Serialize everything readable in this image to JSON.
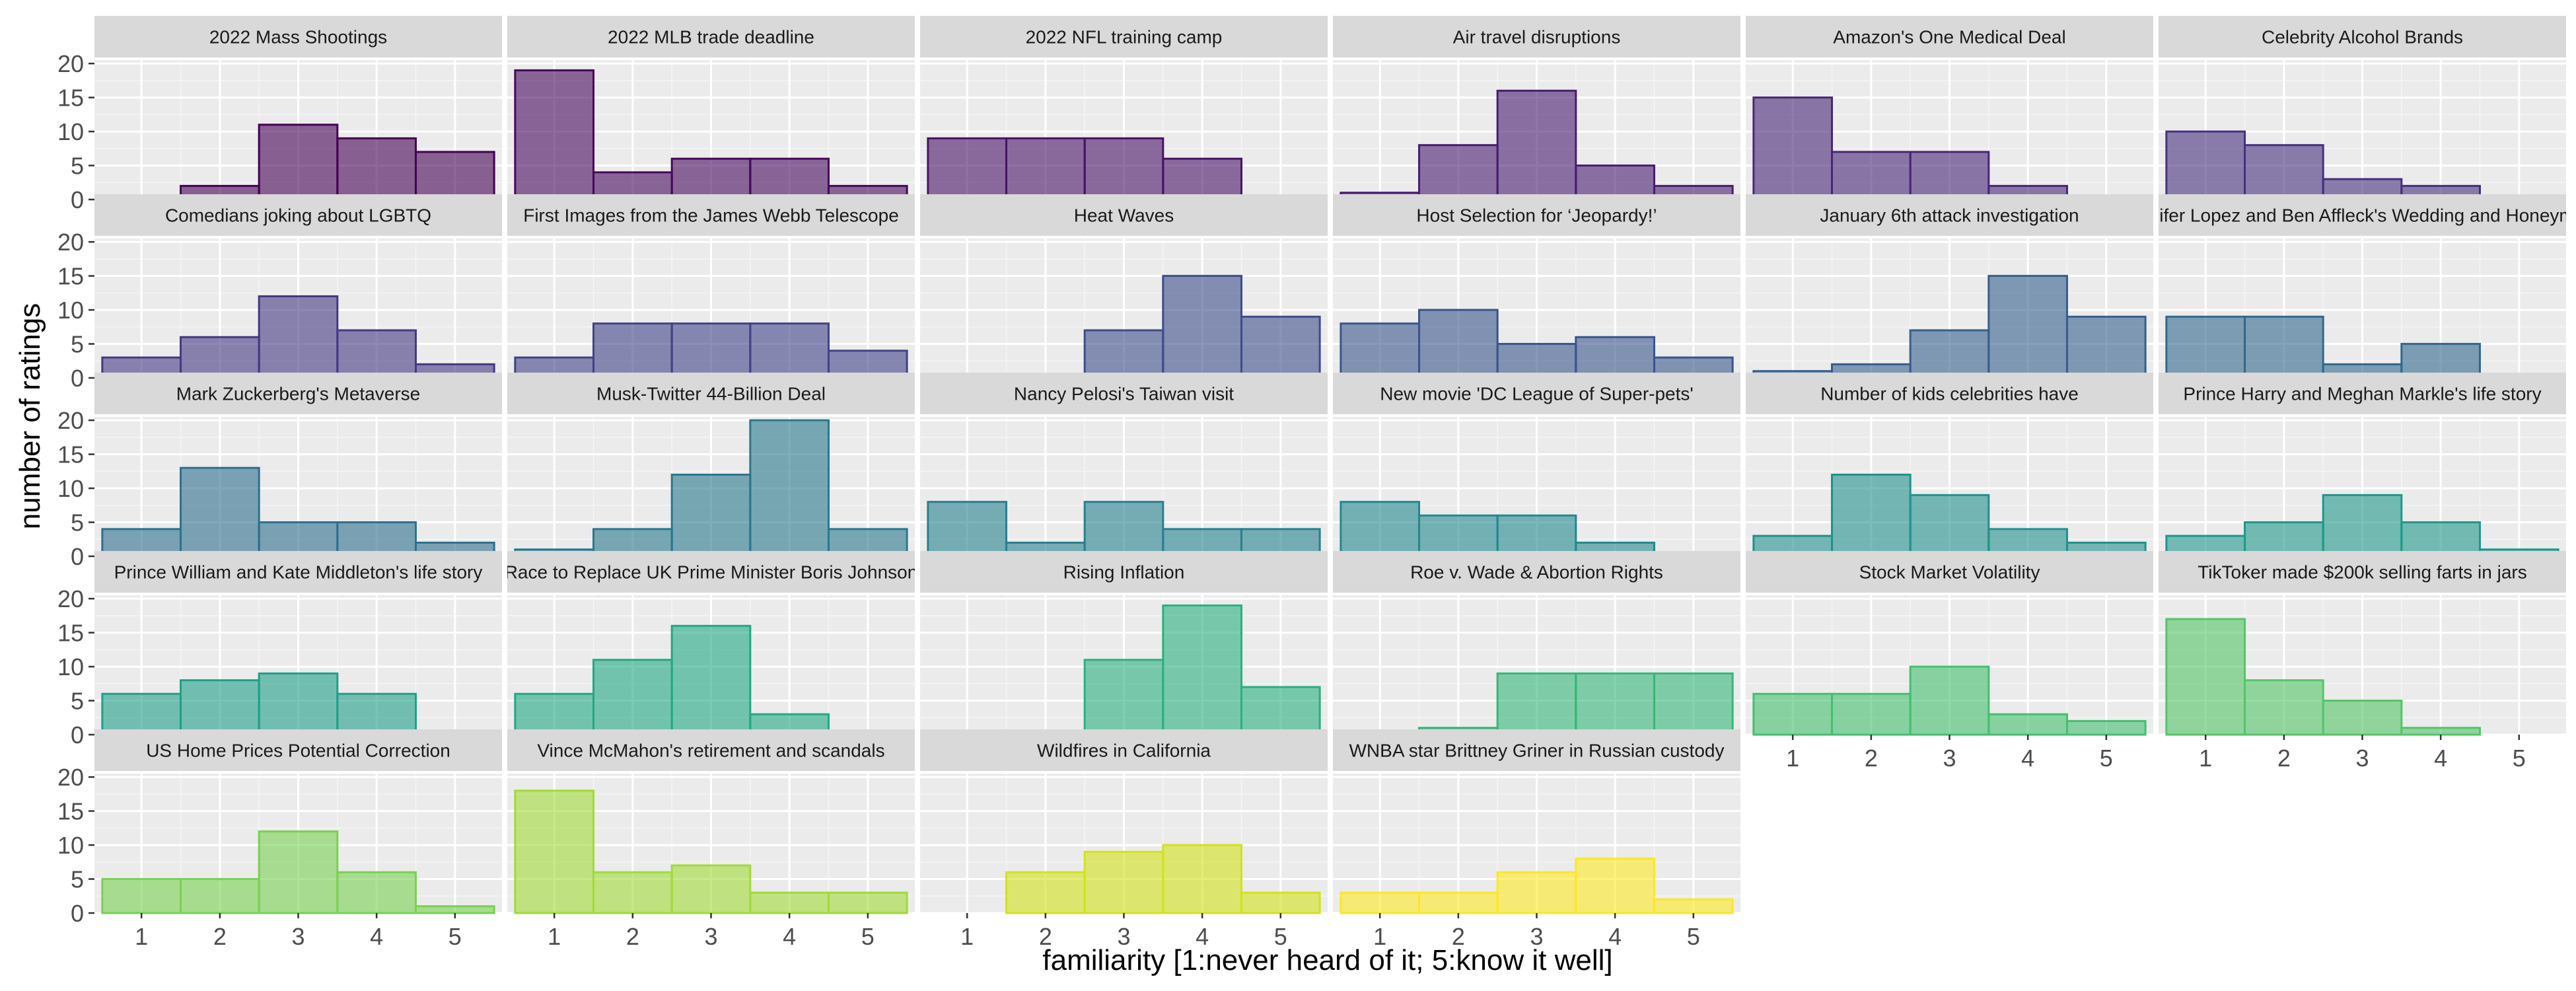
{
  "chart_data": {
    "type": "bar",
    "layout": "facet-grid",
    "xlabel": "familiarity [1:never heard of it; 5:know it well]",
    "ylabel": "number of ratings",
    "categories": [
      1,
      2,
      3,
      4,
      5
    ],
    "x_ticks": [
      "1",
      "2",
      "3",
      "4",
      "5"
    ],
    "y_ticks": [
      "0",
      "5",
      "10",
      "15",
      "20"
    ],
    "ylim": [
      0,
      20.5
    ],
    "grid": true,
    "colors": [
      "#440154",
      "#482575",
      "#414487",
      "#35608d",
      "#2a788e",
      "#21908d",
      "#22a884",
      "#43bf71",
      "#7ad151",
      "#bddf26",
      "#fde725"
    ],
    "panels": [
      {
        "title": "2022 Mass Shootings",
        "values": [
          0,
          2,
          11,
          9,
          7
        ],
        "color": "#440154"
      },
      {
        "title": "2022 MLB trade deadline",
        "values": [
          19,
          4,
          6,
          6,
          2
        ],
        "color": "#46085c"
      },
      {
        "title": "2022 NFL training camp",
        "values": [
          9,
          9,
          9,
          6,
          0
        ],
        "color": "#471365"
      },
      {
        "title": "Air travel disruptions",
        "values": [
          1,
          8,
          16,
          5,
          2
        ],
        "color": "#481d6f"
      },
      {
        "title": "Amazon's One Medical Deal",
        "values": [
          15,
          7,
          7,
          2,
          0
        ],
        "color": "#482677"
      },
      {
        "title": "Celebrity Alcohol Brands",
        "values": [
          10,
          8,
          3,
          2,
          0
        ],
        "color": "#46307e"
      },
      {
        "title": "Comedians joking about LGBTQ",
        "values": [
          3,
          6,
          12,
          7,
          2
        ],
        "color": "#443983"
      },
      {
        "title": "First Images from the James Webb Telescope",
        "values": [
          3,
          8,
          8,
          8,
          4
        ],
        "color": "#414287"
      },
      {
        "title": "Heat Waves",
        "values": [
          0,
          0,
          7,
          15,
          9
        ],
        "color": "#3d4d8a"
      },
      {
        "title": "Host Selection for ‘Jeopardy!’",
        "values": [
          8,
          10,
          5,
          6,
          3
        ],
        "color": "#39558c"
      },
      {
        "title": "January 6th attack investigation",
        "values": [
          1,
          2,
          7,
          15,
          9
        ],
        "color": "#355f8d"
      },
      {
        "title": "Jennifer Lopez and Ben Affleck's Wedding and Honeymoon",
        "values": [
          9,
          9,
          2,
          5,
          0
        ],
        "color": "#31688e"
      },
      {
        "title": "Mark Zuckerberg's Metaverse",
        "values": [
          4,
          13,
          5,
          5,
          2
        ],
        "color": "#2d708e"
      },
      {
        "title": "Musk-Twitter 44-Billion Deal",
        "values": [
          1,
          4,
          12,
          20,
          4
        ],
        "color": "#2a788e"
      },
      {
        "title": "Nancy Pelosi's Taiwan visit",
        "values": [
          8,
          2,
          8,
          4,
          4
        ],
        "color": "#27808e"
      },
      {
        "title": "New movie 'DC League of Super-pets'",
        "values": [
          8,
          6,
          6,
          2,
          0
        ],
        "color": "#23888e"
      },
      {
        "title": "Number of kids celebrities have",
        "values": [
          3,
          12,
          9,
          4,
          2
        ],
        "color": "#21918c"
      },
      {
        "title": "Prince Harry and Meghan Markle's life story",
        "values": [
          3,
          5,
          9,
          5,
          1
        ],
        "color": "#1f988b"
      },
      {
        "title": "Prince William and Kate Middleton's life story",
        "values": [
          6,
          8,
          9,
          6,
          0
        ],
        "color": "#1fa088"
      },
      {
        "title": "Race to Replace UK Prime Minister Boris Johnson",
        "values": [
          6,
          11,
          16,
          3,
          0
        ],
        "color": "#22a884"
      },
      {
        "title": "Rising Inflation",
        "values": [
          0,
          0,
          11,
          19,
          7
        ],
        "color": "#2ab07f"
      },
      {
        "title": "Roe v. Wade & Abortion Rights",
        "values": [
          0,
          1,
          9,
          9,
          9
        ],
        "color": "#35b779"
      },
      {
        "title": "Stock Market Volatility",
        "values": [
          6,
          6,
          10,
          3,
          2
        ],
        "color": "#44bf70"
      },
      {
        "title": "TikToker made $200k selling farts in jars",
        "values": [
          17,
          8,
          5,
          1,
          0
        ],
        "color": "#54c568"
      },
      {
        "title": "US Home Prices Potential Correction",
        "values": [
          5,
          5,
          12,
          6,
          1
        ],
        "color": "#7ad151"
      },
      {
        "title": "Vince McMahon's retirement and scandals",
        "values": [
          18,
          6,
          7,
          3,
          3
        ],
        "color": "#a2da37"
      },
      {
        "title": "Wildfires in California",
        "values": [
          0,
          6,
          9,
          10,
          3
        ],
        "color": "#d2e21b"
      },
      {
        "title": "WNBA star Brittney Griner in Russian custody",
        "values": [
          3,
          3,
          6,
          8,
          2
        ],
        "color": "#fde725"
      }
    ]
  }
}
